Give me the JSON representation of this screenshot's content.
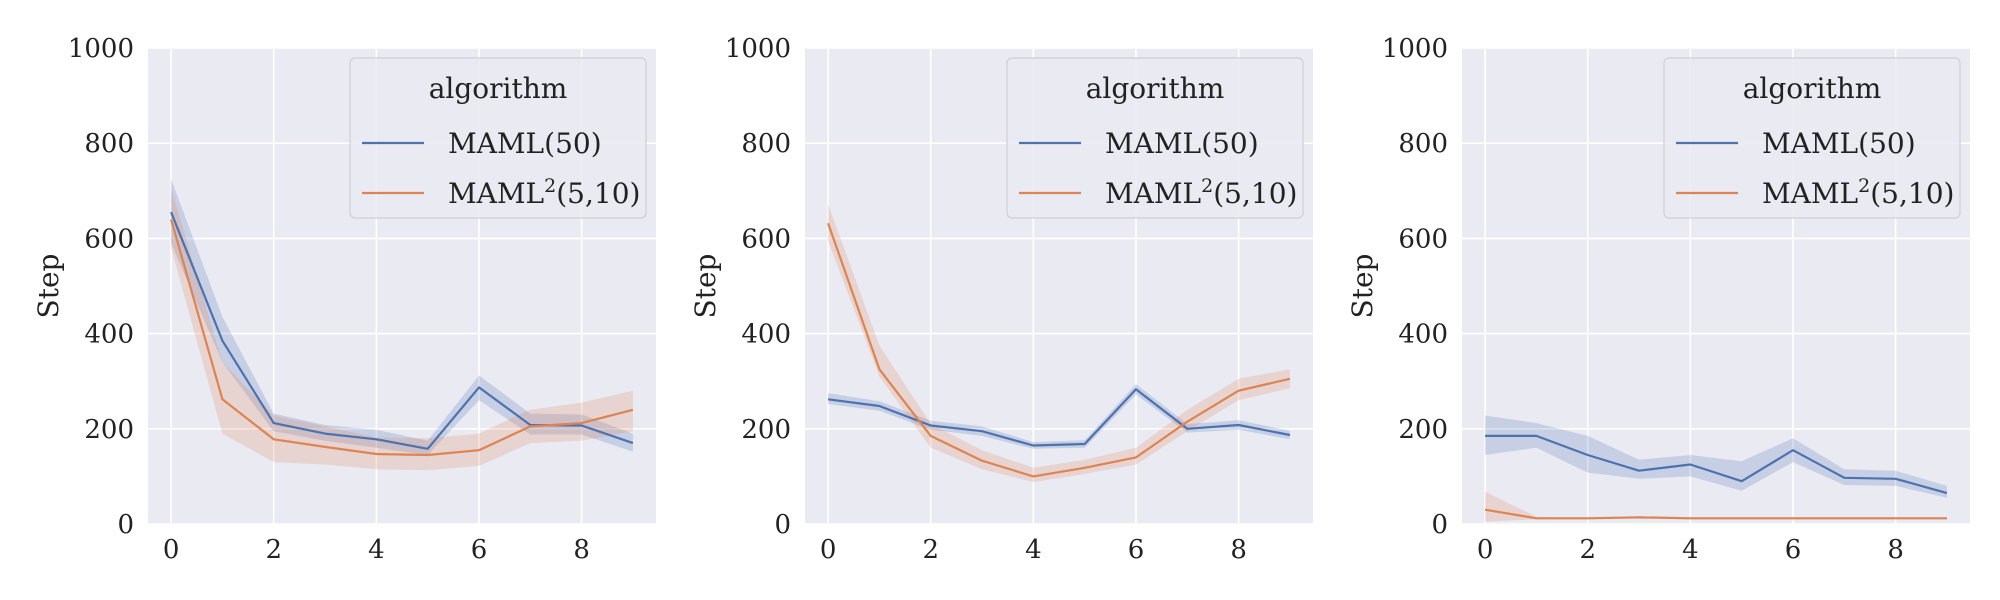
{
  "chart_data": [
    {
      "type": "line",
      "ylabel": "Step",
      "xlim": [
        -0.45,
        9.45
      ],
      "ylim": [
        0,
        1000
      ],
      "xticks": [
        0,
        2,
        4,
        6,
        8
      ],
      "yticks": [
        0,
        200,
        400,
        600,
        800,
        1000
      ],
      "grid": true,
      "legend": {
        "title": "algorithm",
        "placement": "top-right"
      },
      "series": [
        {
          "name": "MAML(50)",
          "color": "#4c72b0",
          "x": [
            0,
            1,
            2,
            3,
            4,
            5,
            6,
            7,
            8,
            9
          ],
          "y": [
            655,
            385,
            212,
            190,
            178,
            158,
            287,
            208,
            207,
            170
          ],
          "lower": [
            590,
            340,
            195,
            175,
            160,
            145,
            260,
            188,
            188,
            152
          ],
          "upper": [
            725,
            435,
            232,
            208,
            198,
            175,
            312,
            232,
            230,
            190
          ]
        },
        {
          "name_prefix": "MAML",
          "name_sup": "2",
          "name_suffix": "(5,10)",
          "color": "#dd8452",
          "x": [
            0,
            1,
            2,
            3,
            4,
            5,
            6,
            7,
            8,
            9
          ],
          "y": [
            640,
            262,
            178,
            162,
            147,
            145,
            155,
            205,
            212,
            240
          ],
          "lower": [
            580,
            190,
            130,
            125,
            115,
            113,
            122,
            170,
            175,
            195
          ],
          "upper": [
            705,
            340,
            228,
            205,
            182,
            180,
            190,
            240,
            255,
            280
          ]
        }
      ]
    },
    {
      "type": "line",
      "ylabel": "Step",
      "xlim": [
        -0.45,
        9.45
      ],
      "ylim": [
        0,
        1000
      ],
      "xticks": [
        0,
        2,
        4,
        6,
        8
      ],
      "yticks": [
        0,
        200,
        400,
        600,
        800,
        1000
      ],
      "grid": true,
      "legend": {
        "title": "algorithm",
        "placement": "top-right"
      },
      "series": [
        {
          "name": "MAML(50)",
          "color": "#4c72b0",
          "x": [
            0,
            1,
            2,
            3,
            4,
            5,
            6,
            7,
            8,
            9
          ],
          "y": [
            262,
            248,
            207,
            195,
            165,
            168,
            283,
            200,
            208,
            187
          ],
          "lower": [
            252,
            238,
            198,
            185,
            158,
            160,
            272,
            192,
            198,
            178
          ],
          "upper": [
            275,
            258,
            217,
            205,
            172,
            176,
            294,
            210,
            218,
            196
          ]
        },
        {
          "name_prefix": "MAML",
          "name_sup": "2",
          "name_suffix": "(5,10)",
          "color": "#dd8452",
          "x": [
            0,
            1,
            2,
            3,
            4,
            5,
            6,
            7,
            8,
            9
          ],
          "y": [
            632,
            325,
            185,
            133,
            100,
            118,
            140,
            215,
            280,
            305
          ],
          "lower": [
            595,
            310,
            160,
            115,
            88,
            105,
            125,
            195,
            260,
            285
          ],
          "upper": [
            672,
            375,
            210,
            155,
            118,
            135,
            160,
            240,
            305,
            325
          ]
        }
      ]
    },
    {
      "type": "line",
      "ylabel": "Step",
      "xlim": [
        -0.45,
        9.45
      ],
      "ylim": [
        0,
        1000
      ],
      "xticks": [
        0,
        2,
        4,
        6,
        8
      ],
      "yticks": [
        0,
        200,
        400,
        600,
        800,
        1000
      ],
      "grid": true,
      "legend": {
        "title": "algorithm",
        "placement": "top-right"
      },
      "series": [
        {
          "name": "MAML(50)",
          "color": "#4c72b0",
          "x": [
            0,
            1,
            2,
            3,
            4,
            5,
            6,
            7,
            8,
            9
          ],
          "y": [
            185,
            185,
            145,
            112,
            125,
            90,
            155,
            97,
            95,
            65
          ],
          "lower": [
            145,
            160,
            108,
            95,
            100,
            70,
            130,
            82,
            80,
            55
          ],
          "upper": [
            228,
            212,
            185,
            135,
            145,
            132,
            180,
            115,
            112,
            80
          ]
        },
        {
          "name_prefix": "MAML",
          "name_sup": "2",
          "name_suffix": "(5,10)",
          "color": "#dd8452",
          "x": [
            0,
            1,
            2,
            3,
            4,
            5,
            6,
            7,
            8,
            9
          ],
          "y": [
            30,
            12,
            12,
            14,
            12,
            12,
            12,
            12,
            12,
            12
          ],
          "lower": [
            5,
            10,
            10,
            11,
            10,
            10,
            10,
            10,
            10,
            10
          ],
          "upper": [
            68,
            15,
            14,
            16,
            14,
            14,
            14,
            14,
            14,
            14
          ]
        }
      ]
    }
  ]
}
